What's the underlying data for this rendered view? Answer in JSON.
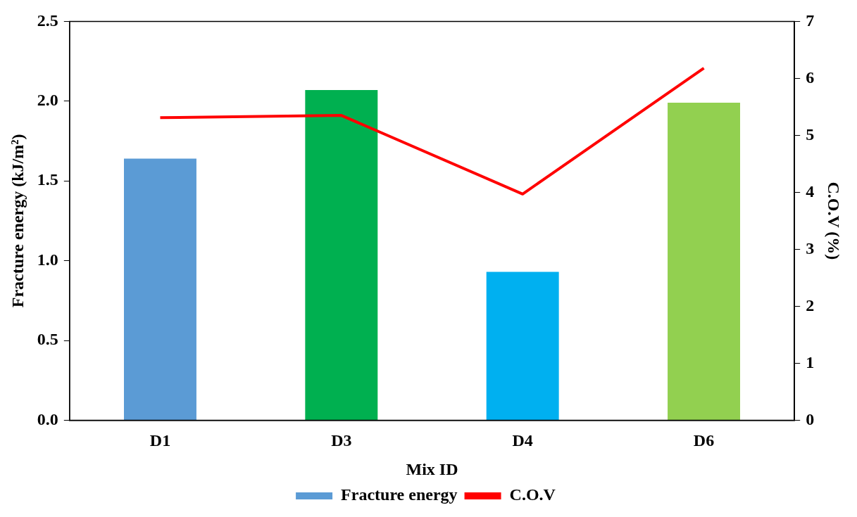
{
  "chart_data": {
    "type": "bar",
    "categories": [
      "D1",
      "D3",
      "D4",
      "D6"
    ],
    "xlabel": "Mix ID",
    "ylabel": "Fracture energy (kJ/m²)",
    "y2label": "C.O.V (%)",
    "ylim": [
      0,
      2.5
    ],
    "yticks": [
      {
        "value": 0,
        "label": "0.0"
      },
      {
        "value": 0.5,
        "label": "0.5"
      },
      {
        "value": 1,
        "label": "1.0"
      },
      {
        "value": 1.5,
        "label": "1.5"
      },
      {
        "value": 2,
        "label": "2.0"
      },
      {
        "value": 2.5,
        "label": "2.5"
      }
    ],
    "y2lim": [
      0,
      7
    ],
    "y2ticks": [
      0,
      1,
      2,
      3,
      4,
      5,
      6,
      7
    ],
    "grid": false,
    "legend": "bottom",
    "marker": "none",
    "line_style": "solid",
    "series": [
      {
        "name": "Fracture energy",
        "color": "#5b9bd5",
        "colors": [
          "#5b9bd5",
          "#00b050",
          "#00b0f0",
          "#92d050"
        ],
        "values": [
          1.64,
          2.07,
          0.93,
          1.99
        ]
      },
      {
        "name": "C.O.V",
        "type": "line",
        "axis": "y2",
        "color": "#ff0000",
        "values": [
          5.31,
          5.35,
          3.97,
          6.18
        ]
      }
    ]
  }
}
